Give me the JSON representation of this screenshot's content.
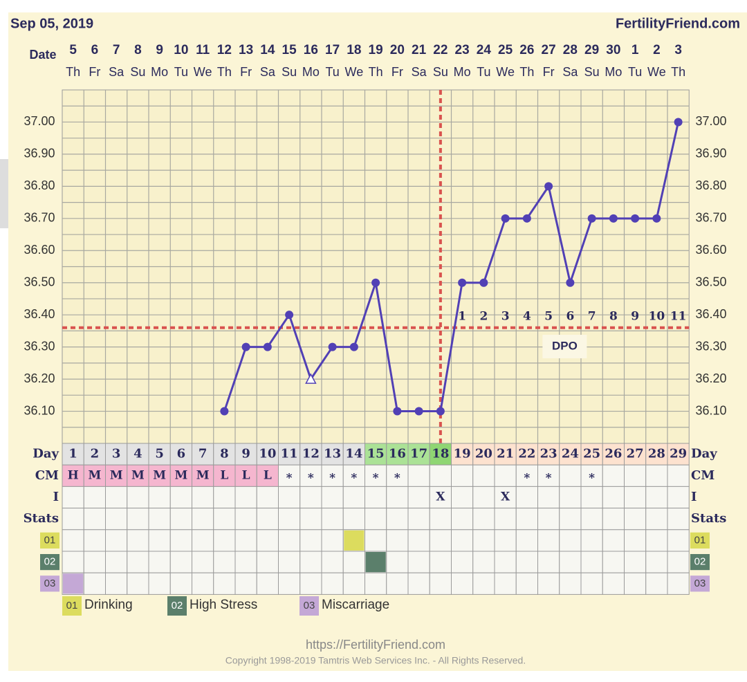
{
  "header": {
    "date": "Sep 05, 2019",
    "site": "FertilityFriend.com"
  },
  "chart_data": {
    "type": "line",
    "date_label": "Date",
    "categories": [
      "5",
      "6",
      "7",
      "8",
      "9",
      "10",
      "11",
      "12",
      "13",
      "14",
      "15",
      "16",
      "17",
      "18",
      "19",
      "20",
      "21",
      "22",
      "23",
      "24",
      "25",
      "26",
      "27",
      "28",
      "29",
      "30",
      "1",
      "2",
      "3"
    ],
    "weekdays": [
      "Th",
      "Fr",
      "Sa",
      "Su",
      "Mo",
      "Tu",
      "We",
      "Th",
      "Fr",
      "Sa",
      "Su",
      "Mo",
      "Tu",
      "We",
      "Th",
      "Fr",
      "Sa",
      "Su",
      "Mo",
      "Tu",
      "We",
      "Th",
      "Fr",
      "Sa",
      "Su",
      "Mo",
      "Tu",
      "We",
      "Th"
    ],
    "values": [
      null,
      null,
      null,
      null,
      null,
      null,
      null,
      36.1,
      36.3,
      36.3,
      36.4,
      36.2,
      36.3,
      36.3,
      36.5,
      36.1,
      36.1,
      36.1,
      36.5,
      36.5,
      36.7,
      36.7,
      36.8,
      36.5,
      36.7,
      36.7,
      36.7,
      36.7,
      37.0
    ],
    "markers": [
      null,
      null,
      null,
      null,
      null,
      null,
      null,
      "circle",
      "circle",
      "circle",
      "circle",
      "open-triangle",
      "circle",
      "circle",
      "circle",
      "circle",
      "circle",
      "circle",
      "circle",
      "circle",
      "circle",
      "circle",
      "circle",
      "circle",
      "circle",
      "circle",
      "circle",
      "circle",
      "circle"
    ],
    "color": "#5140b5",
    "ylim": [
      36.0,
      37.1
    ],
    "yticks": [
      {
        "value": 36.1,
        "label": "36.10"
      },
      {
        "value": 36.2,
        "label": "36.20"
      },
      {
        "value": 36.3,
        "label": "36.30"
      },
      {
        "value": 36.4,
        "label": "36.40"
      },
      {
        "value": 36.5,
        "label": "36.50"
      },
      {
        "value": 36.6,
        "label": "36.60"
      },
      {
        "value": 36.7,
        "label": "36.70"
      },
      {
        "value": 36.8,
        "label": "36.80"
      },
      {
        "value": 36.9,
        "label": "36.90"
      },
      {
        "value": 37.0,
        "label": "37.00"
      }
    ],
    "grid": true,
    "coverline": 36.36,
    "ovulation_day": 18,
    "reference_color": "#d9534f",
    "dpo_label": "DPO",
    "dpo": [
      null,
      null,
      null,
      null,
      null,
      null,
      null,
      null,
      null,
      null,
      null,
      null,
      null,
      null,
      null,
      null,
      null,
      null,
      1,
      2,
      3,
      4,
      5,
      6,
      7,
      8,
      9,
      10,
      11
    ]
  },
  "table": {
    "day_label": "Day",
    "days": [
      1,
      2,
      3,
      4,
      5,
      6,
      7,
      8,
      9,
      10,
      11,
      12,
      13,
      14,
      15,
      16,
      17,
      18,
      19,
      20,
      21,
      22,
      23,
      24,
      25,
      26,
      27,
      28,
      29
    ],
    "day_fills": [
      "#e3e3e3",
      "#e3e3e3",
      "#e3e3e3",
      "#e3e3e3",
      "#e3e3e3",
      "#e3e3e3",
      "#e3e3e3",
      "#e3e3e3",
      "#e3e3e3",
      "#e3e3e3",
      "#e3e3e3",
      "#e3e3e3",
      "#e3e3e3",
      "#e3e3e3",
      "#abe296",
      "#abe296",
      "#abe296",
      "#8fd673",
      "#fde2cf",
      "#fde2cf",
      "#fde2cf",
      "#fde2cf",
      "#fde2cf",
      "#fde2cf",
      "#fde2cf",
      "#fde2cf",
      "#fde2cf",
      "#fde2cf",
      "#fde2cf"
    ],
    "cm_label": "CM",
    "cm": [
      "H",
      "M",
      "M",
      "M",
      "M",
      "M",
      "M",
      "L",
      "L",
      "L",
      "*",
      "*",
      "*",
      "*",
      "*",
      "*",
      null,
      null,
      null,
      null,
      null,
      "*",
      "*",
      null,
      "*",
      null,
      null,
      null,
      null
    ],
    "cm_fills": [
      "#f5b6cf",
      "#f5b6cf",
      "#f5b6cf",
      "#f5b6cf",
      "#f5b6cf",
      "#f5b6cf",
      "#f5b6cf",
      "#f5b6cf",
      "#f5b6cf",
      "#f5b6cf",
      null,
      null,
      null,
      null,
      null,
      null,
      null,
      null,
      null,
      null,
      null,
      null,
      null,
      null,
      null,
      null,
      null,
      null,
      null
    ],
    "i_label": "I",
    "i": [
      null,
      null,
      null,
      null,
      null,
      null,
      null,
      null,
      null,
      null,
      null,
      null,
      null,
      null,
      null,
      null,
      null,
      "X",
      null,
      null,
      "X",
      null,
      null,
      null,
      null,
      null,
      null,
      null,
      null
    ],
    "stats_label": "Stats",
    "stats": [
      {
        "code": "01",
        "name": "Drinking",
        "color": "#dcdc5e",
        "day": 14
      },
      {
        "code": "02",
        "name": "High Stress",
        "color": "#5b7f6b",
        "day": 15
      },
      {
        "code": "03",
        "name": "Miscarriage",
        "color": "#c4a8d6",
        "day": 1
      }
    ]
  },
  "footer": {
    "url": "https://FertilityFriend.com",
    "copyright": "Copyright 1998-2019 Tamtris Web Services Inc. - All Rights Reserved."
  }
}
